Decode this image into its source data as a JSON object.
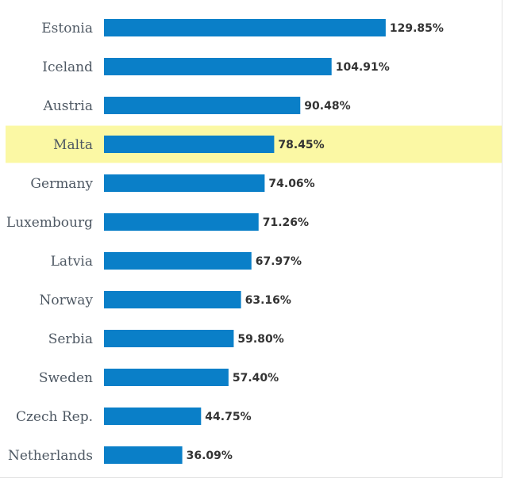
{
  "chart_data": {
    "type": "bar",
    "orientation": "horizontal",
    "categories": [
      "Estonia",
      "Iceland",
      "Austria",
      "Malta",
      "Germany",
      "Luxembourg",
      "Latvia",
      "Norway",
      "Serbia",
      "Sweden",
      "Czech Rep.",
      "Netherlands"
    ],
    "values": [
      129.85,
      104.91,
      90.48,
      78.45,
      74.06,
      71.26,
      67.97,
      63.16,
      59.8,
      57.4,
      44.75,
      36.09
    ],
    "value_labels": [
      "129.85%",
      "104.91%",
      "90.48%",
      "78.45%",
      "74.06%",
      "71.26%",
      "67.97%",
      "63.16%",
      "59.80%",
      "57.40%",
      "44.75%",
      "36.09%"
    ],
    "highlighted_category": "Malta",
    "bar_color": "#0a7fc8",
    "highlight_color": "#fbf8a4",
    "title": "",
    "xlabel": "",
    "ylabel": "",
    "xlim": [
      0,
      130
    ],
    "grid": false,
    "legend": "none"
  }
}
